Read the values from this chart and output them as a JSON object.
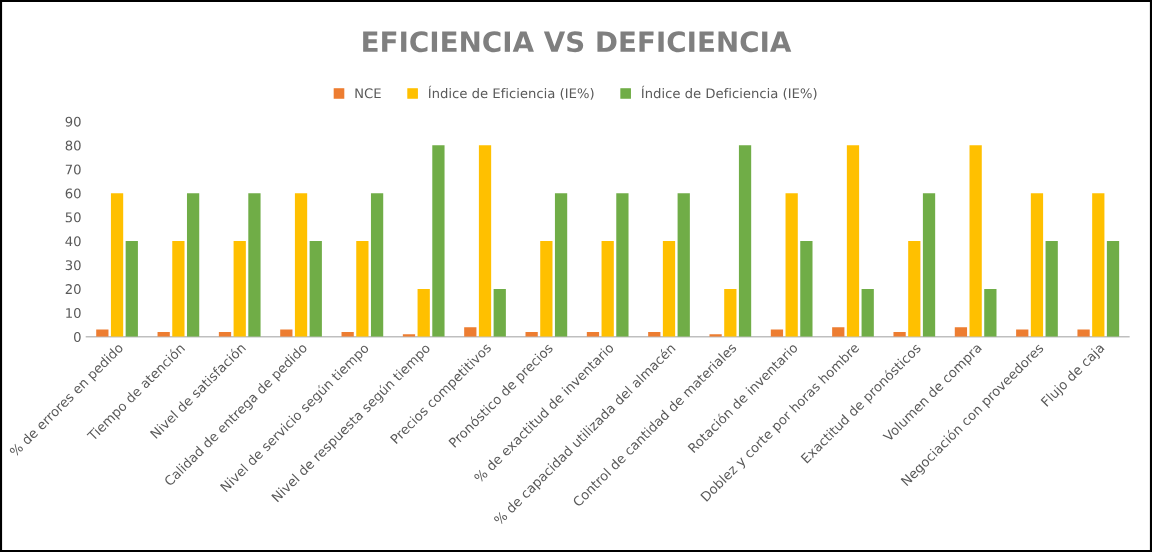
{
  "chart_data": {
    "type": "bar",
    "title": "EFICIENCIA VS DEFICIENCIA",
    "categories": [
      "% de errores en pedido",
      "Tiempo de atención",
      "Nivel de satisfación",
      "Calidad de entrega de pedido",
      "Nivel de servicio según tiempo",
      "Nivel de respuesta según tiempo",
      "Precios competitivos",
      "Pronóstico de precios",
      "% de exactitud de inventario",
      "% de capacidad utilizada del almacén",
      "Control de cantidad de materiales",
      "Rotación de inventario",
      "Doblez y corte por horas hombre",
      "Exactitud de pronósticos",
      "Volumen de compra",
      "Negociación con proveedores",
      "Flujo de caja"
    ],
    "series": [
      {
        "name": "NCE",
        "color": "#ed7d31",
        "values": [
          3,
          2,
          2,
          3,
          2,
          1,
          4,
          2,
          2,
          2,
          1,
          3,
          4,
          2,
          4,
          3,
          3
        ]
      },
      {
        "name": "Índice de Eficiencia (IE%)",
        "color": "#ffc000",
        "values": [
          60,
          40,
          40,
          60,
          40,
          20,
          80,
          40,
          40,
          40,
          20,
          60,
          80,
          40,
          80,
          60,
          60
        ]
      },
      {
        "name": "Índice de Deficiencia (IE%)",
        "color": "#70ad47",
        "values": [
          40,
          60,
          60,
          40,
          60,
          80,
          20,
          60,
          60,
          60,
          80,
          40,
          20,
          60,
          20,
          40,
          40
        ]
      }
    ],
    "ylim": [
      0,
      90
    ],
    "yticks": [
      0,
      10,
      20,
      30,
      40,
      50,
      60,
      70,
      80,
      90
    ],
    "grid": false,
    "legend": "top"
  }
}
